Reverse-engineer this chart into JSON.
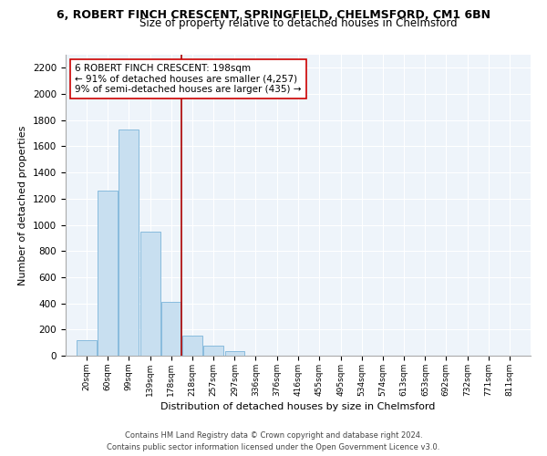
{
  "title": "6, ROBERT FINCH CRESCENT, SPRINGFIELD, CHELMSFORD, CM1 6BN",
  "subtitle": "Size of property relative to detached houses in Chelmsford",
  "xlabel": "Distribution of detached houses by size in Chelmsford",
  "ylabel": "Number of detached properties",
  "bar_labels": [
    "20sqm",
    "60sqm",
    "99sqm",
    "139sqm",
    "178sqm",
    "218sqm",
    "257sqm",
    "297sqm",
    "336sqm",
    "376sqm",
    "416sqm",
    "455sqm",
    "495sqm",
    "534sqm",
    "574sqm",
    "613sqm",
    "653sqm",
    "692sqm",
    "732sqm",
    "771sqm",
    "811sqm"
  ],
  "bar_values": [
    120,
    1260,
    1730,
    945,
    410,
    150,
    80,
    35,
    0,
    0,
    0,
    0,
    0,
    0,
    0,
    0,
    0,
    0,
    0,
    0,
    0
  ],
  "bar_color": "#c8dff0",
  "bar_edge_color": "#88bbdd",
  "grid_color": "#dde8f0",
  "ylim": [
    0,
    2300
  ],
  "yticks": [
    0,
    200,
    400,
    600,
    800,
    1000,
    1200,
    1400,
    1600,
    1800,
    2000,
    2200
  ],
  "property_line_label": "6 ROBERT FINCH CRESCENT: 198sqm",
  "annotation_line1": "← 91% of detached houses are smaller (4,257)",
  "annotation_line2": "9% of semi-detached houses are larger (435) →",
  "line_color": "#aa0000",
  "annotation_box_color": "#ffffff",
  "annotation_box_edge": "#cc0000",
  "footnote1": "Contains HM Land Registry data © Crown copyright and database right 2024.",
  "footnote2": "Contains public sector information licensed under the Open Government Licence v3.0."
}
